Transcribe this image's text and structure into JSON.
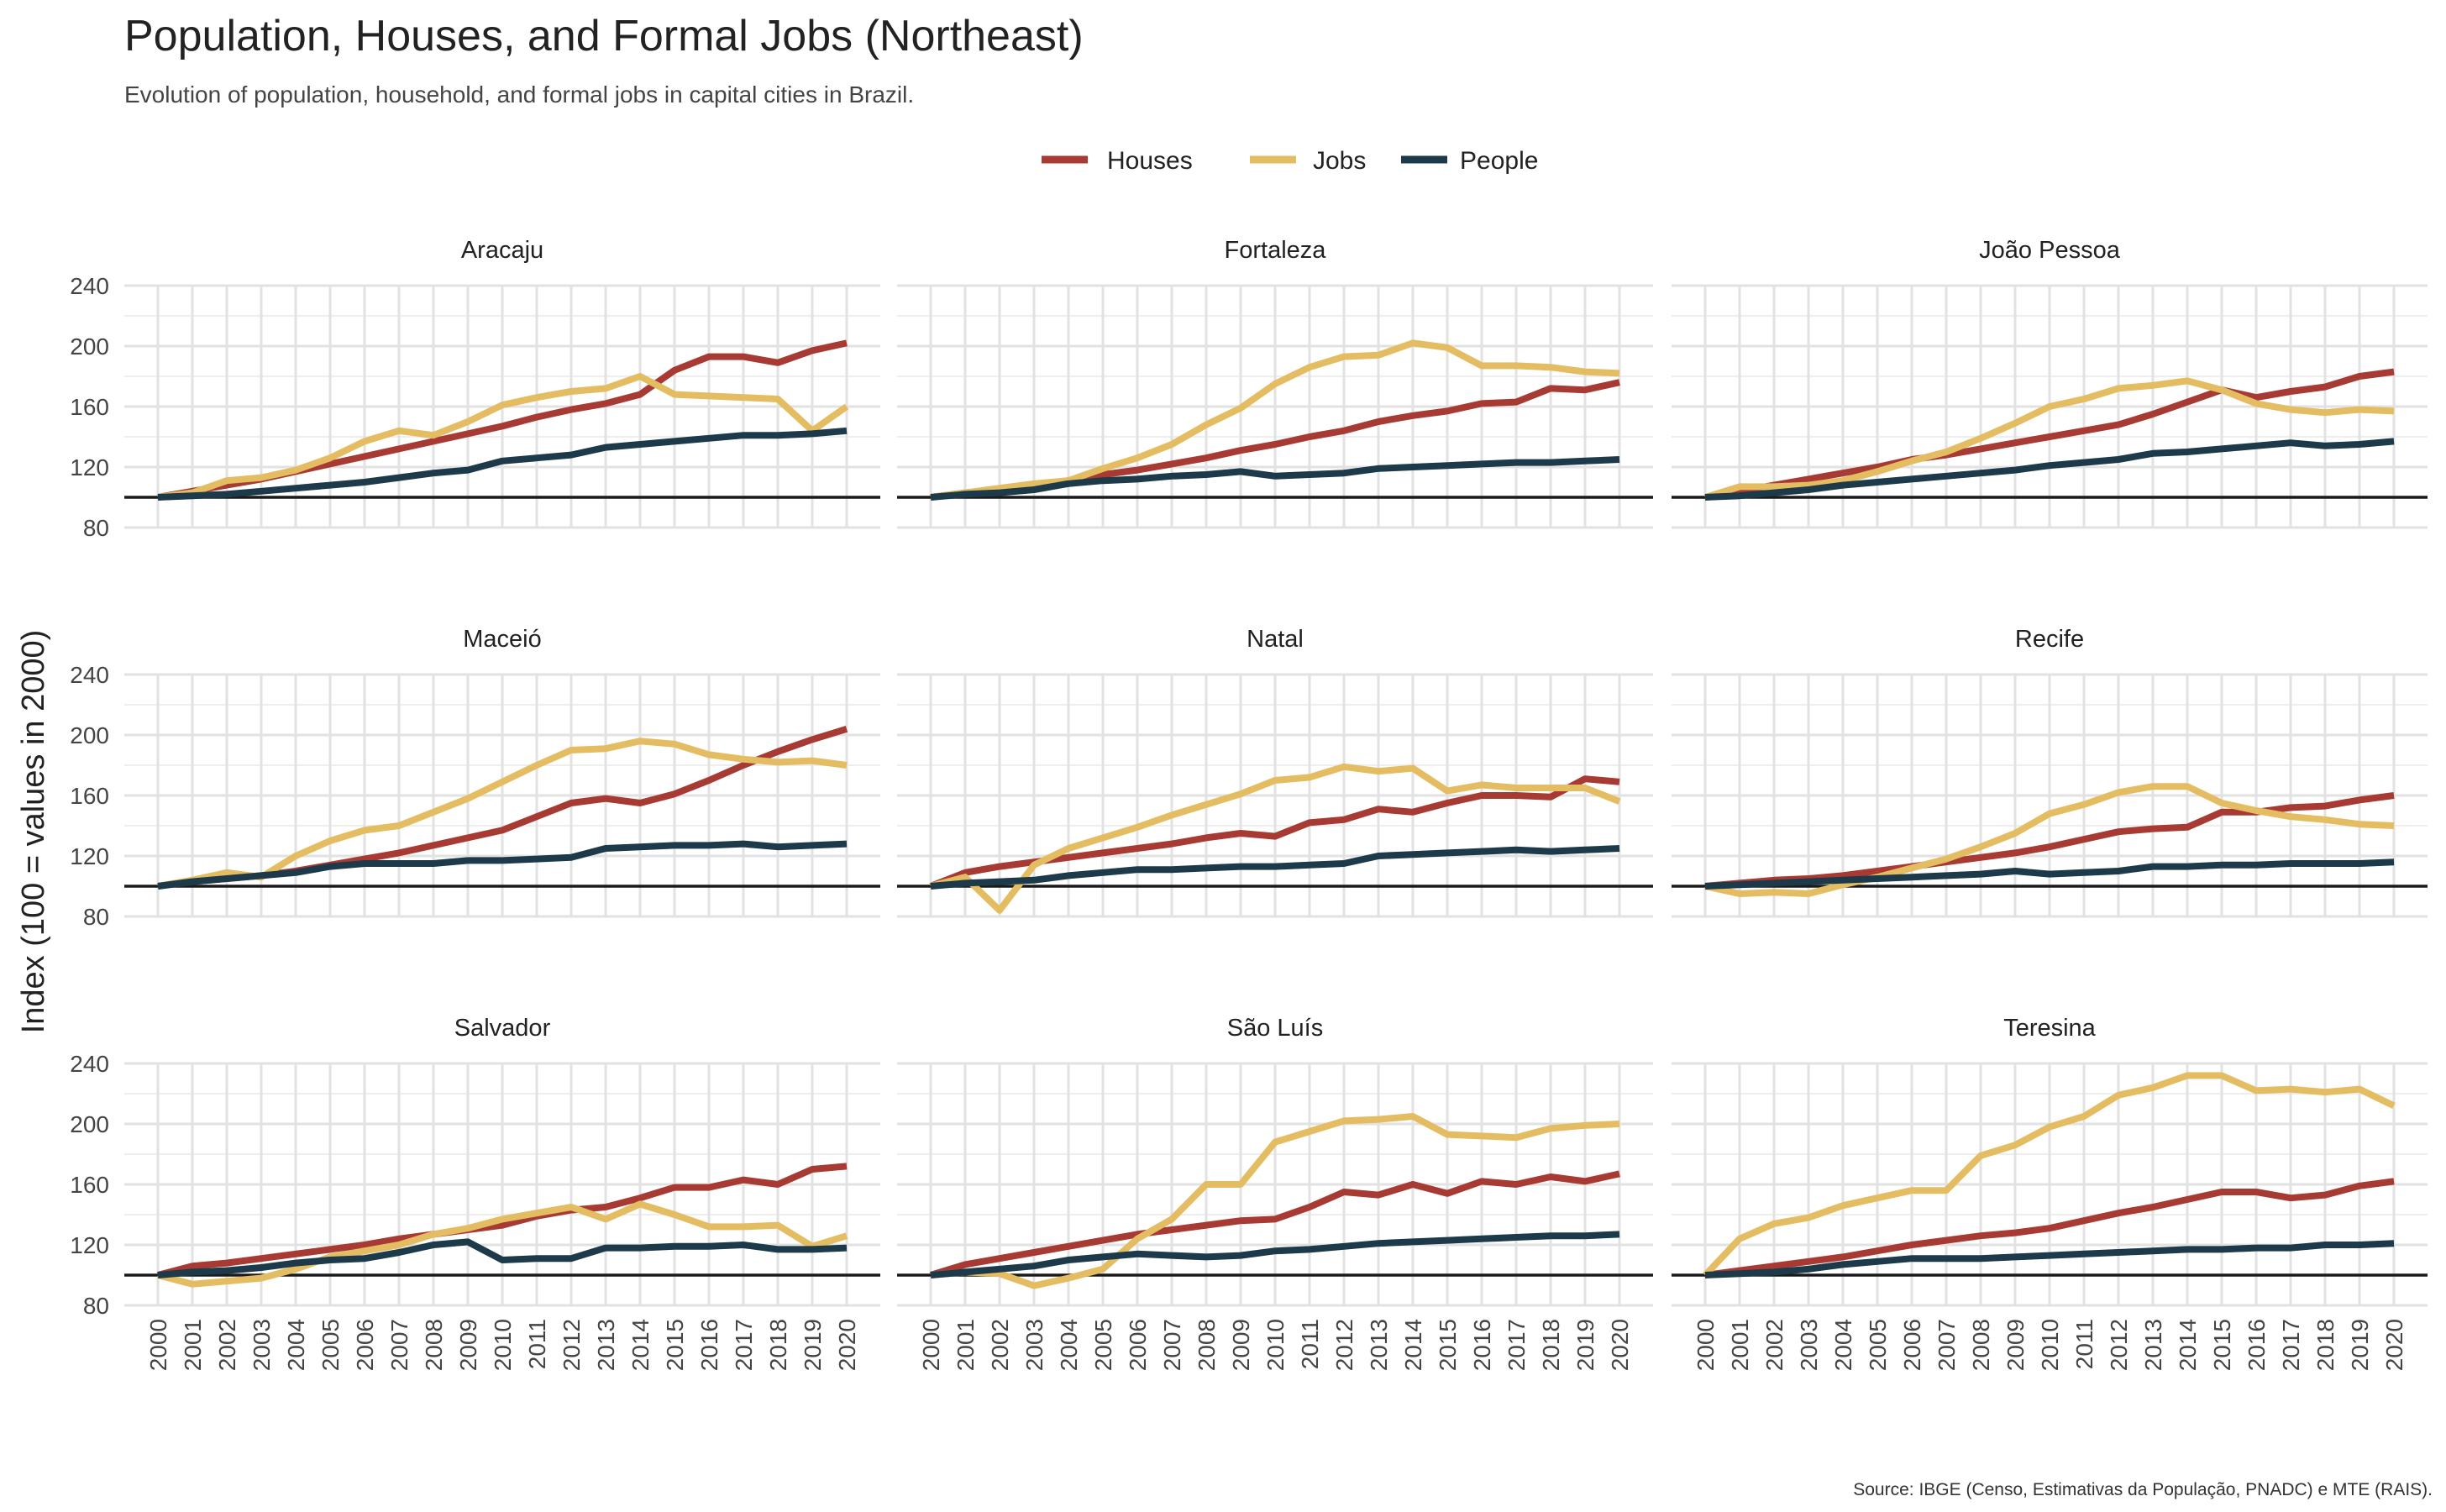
{
  "chart_data": {
    "type": "line",
    "title": "Population, Houses, and Formal Jobs (Northeast)",
    "subtitle": "Evolution of population, household, and formal jobs in capital cities in Brazil.",
    "ylabel": "Index (100 = values in 2000)",
    "xlabel": "",
    "caption": "Source: IBGE (Censo, Estimativas da População, PNADC) e MTE (RAIS).",
    "ylim": [
      80,
      240
    ],
    "yticks": [
      80,
      120,
      160,
      200,
      240
    ],
    "reference_line": 100,
    "grid": true,
    "legend_position": "top",
    "x": [
      "2000",
      "2001",
      "2002",
      "2003",
      "2004",
      "2005",
      "2006",
      "2007",
      "2008",
      "2009",
      "2010",
      "2011",
      "2012",
      "2013",
      "2014",
      "2015",
      "2016",
      "2017",
      "2018",
      "2019",
      "2020"
    ],
    "legend": [
      {
        "name": "Houses",
        "color": "#a83a34"
      },
      {
        "name": "Jobs",
        "color": "#e4bd62"
      },
      {
        "name": "People",
        "color": "#1c3a4a"
      }
    ],
    "panels": [
      {
        "name": "Aracaju",
        "houses": [
          100,
          104,
          108,
          112,
          117,
          122,
          127,
          132,
          137,
          142,
          147,
          153,
          158,
          162,
          168,
          184,
          193,
          193,
          189,
          197,
          202
        ],
        "jobs": [
          100,
          103,
          111,
          113,
          118,
          126,
          137,
          144,
          141,
          150,
          161,
          166,
          170,
          172,
          180,
          168,
          167,
          166,
          165,
          144,
          160
        ],
        "people": [
          100,
          101,
          102,
          104,
          106,
          108,
          110,
          113,
          116,
          118,
          124,
          126,
          128,
          133,
          135,
          137,
          139,
          141,
          141,
          142,
          144
        ]
      },
      {
        "name": "Fortaleza",
        "houses": [
          100,
          103,
          105,
          108,
          111,
          115,
          118,
          122,
          126,
          131,
          135,
          140,
          144,
          150,
          154,
          157,
          162,
          163,
          172,
          171,
          176
        ],
        "jobs": [
          100,
          103,
          106,
          109,
          111,
          119,
          126,
          135,
          148,
          159,
          175,
          186,
          193,
          194,
          202,
          199,
          187,
          187,
          186,
          183,
          182
        ],
        "people": [
          100,
          102,
          103,
          105,
          109,
          111,
          112,
          114,
          115,
          117,
          114,
          115,
          116,
          119,
          120,
          121,
          122,
          123,
          123,
          124,
          125
        ]
      },
      {
        "name": "João Pessoa",
        "houses": [
          100,
          104,
          108,
          112,
          116,
          120,
          125,
          128,
          132,
          136,
          140,
          144,
          148,
          155,
          163,
          171,
          166,
          170,
          173,
          180,
          183
        ],
        "jobs": [
          100,
          107,
          107,
          108,
          111,
          117,
          124,
          130,
          139,
          149,
          160,
          165,
          172,
          174,
          177,
          171,
          162,
          158,
          156,
          158,
          157
        ],
        "people": [
          100,
          101,
          103,
          105,
          108,
          110,
          112,
          114,
          116,
          118,
          121,
          123,
          125,
          129,
          130,
          132,
          134,
          136,
          134,
          135,
          137
        ]
      },
      {
        "name": "Maceió",
        "houses": [
          100,
          103,
          105,
          107,
          110,
          114,
          118,
          122,
          127,
          132,
          137,
          146,
          155,
          158,
          155,
          161,
          170,
          180,
          189,
          197,
          204
        ],
        "jobs": [
          100,
          104,
          109,
          106,
          120,
          130,
          137,
          140,
          149,
          158,
          169,
          180,
          190,
          191,
          196,
          194,
          187,
          184,
          182,
          183,
          180
        ],
        "people": [
          100,
          103,
          105,
          107,
          109,
          113,
          115,
          115,
          115,
          117,
          117,
          118,
          119,
          125,
          126,
          127,
          127,
          128,
          126,
          127,
          128
        ]
      },
      {
        "name": "Natal",
        "houses": [
          100,
          109,
          113,
          116,
          119,
          122,
          125,
          128,
          132,
          135,
          133,
          142,
          144,
          151,
          149,
          155,
          160,
          160,
          159,
          171,
          169
        ],
        "jobs": [
          100,
          106,
          84,
          114,
          125,
          132,
          139,
          147,
          154,
          161,
          170,
          172,
          179,
          176,
          178,
          163,
          167,
          165,
          165,
          165,
          156
        ],
        "people": [
          100,
          102,
          103,
          104,
          107,
          109,
          111,
          111,
          112,
          113,
          113,
          114,
          115,
          120,
          121,
          122,
          123,
          124,
          123,
          124,
          125
        ]
      },
      {
        "name": "Recife",
        "houses": [
          100,
          102,
          104,
          105,
          107,
          110,
          113,
          116,
          119,
          122,
          126,
          131,
          136,
          138,
          139,
          149,
          149,
          152,
          153,
          157,
          160
        ],
        "jobs": [
          100,
          95,
          96,
          95,
          101,
          106,
          112,
          118,
          126,
          135,
          148,
          154,
          162,
          166,
          166,
          155,
          150,
          146,
          144,
          141,
          140
        ],
        "people": [
          100,
          101,
          102,
          103,
          104,
          105,
          106,
          107,
          108,
          110,
          108,
          109,
          110,
          113,
          113,
          114,
          114,
          115,
          115,
          115,
          116
        ]
      },
      {
        "name": "Salvador",
        "houses": [
          100,
          106,
          108,
          111,
          114,
          117,
          120,
          124,
          127,
          130,
          133,
          139,
          143,
          145,
          151,
          158,
          158,
          163,
          160,
          170,
          172
        ],
        "jobs": [
          100,
          94,
          96,
          98,
          104,
          112,
          116,
          120,
          127,
          131,
          137,
          141,
          145,
          137,
          147,
          140,
          132,
          132,
          133,
          119,
          126
        ],
        "people": [
          100,
          102,
          103,
          105,
          108,
          110,
          111,
          115,
          120,
          122,
          110,
          111,
          111,
          118,
          118,
          119,
          119,
          120,
          117,
          117,
          118
        ]
      },
      {
        "name": "São Luís",
        "houses": [
          100,
          107,
          111,
          115,
          119,
          123,
          127,
          130,
          133,
          136,
          137,
          145,
          155,
          153,
          160,
          154,
          162,
          160,
          165,
          162,
          167
        ],
        "jobs": [
          100,
          102,
          101,
          93,
          98,
          104,
          124,
          137,
          160,
          160,
          188,
          195,
          202,
          203,
          205,
          193,
          192,
          191,
          197,
          199,
          200
        ],
        "people": [
          100,
          102,
          104,
          106,
          110,
          112,
          114,
          113,
          112,
          113,
          116,
          117,
          119,
          121,
          122,
          123,
          124,
          125,
          126,
          126,
          127
        ]
      },
      {
        "name": "Teresina",
        "houses": [
          100,
          103,
          106,
          109,
          112,
          116,
          120,
          123,
          126,
          128,
          131,
          136,
          141,
          145,
          150,
          155,
          155,
          151,
          153,
          159,
          162
        ],
        "jobs": [
          100,
          124,
          134,
          138,
          146,
          151,
          156,
          156,
          179,
          186,
          198,
          205,
          219,
          224,
          232,
          232,
          222,
          223,
          221,
          223,
          212
        ],
        "people": [
          100,
          101,
          102,
          104,
          107,
          109,
          111,
          111,
          111,
          112,
          113,
          114,
          115,
          116,
          117,
          117,
          118,
          118,
          120,
          120,
          121
        ]
      }
    ]
  }
}
